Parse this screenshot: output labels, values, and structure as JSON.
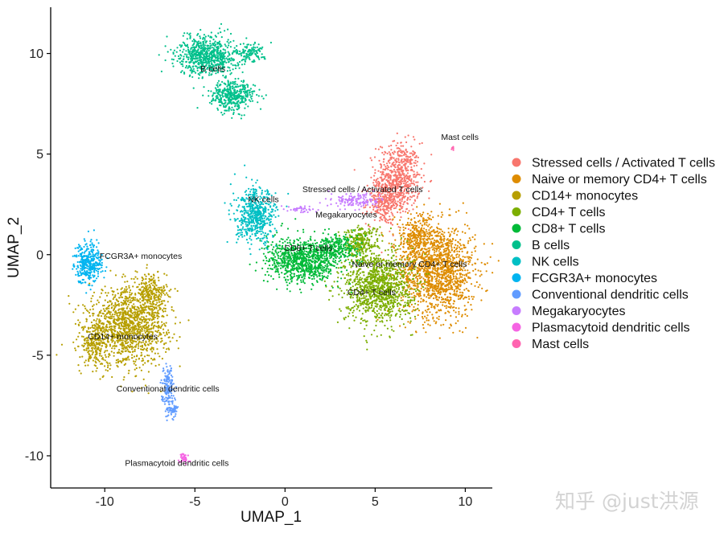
{
  "chart_data": {
    "type": "scatter",
    "xlabel": "UMAP_1",
    "ylabel": "UMAP_2",
    "xlim": [
      -13,
      11.5
    ],
    "ylim": [
      -11.6,
      12.3
    ],
    "xticks": [
      -10,
      -5,
      0,
      5,
      10
    ],
    "yticks": [
      -10,
      -5,
      0,
      5,
      10
    ],
    "xtick_labels": [
      "-10",
      "-5",
      "0",
      "5",
      "10"
    ],
    "ytick_labels": [
      "-10",
      "-5",
      "0",
      "5",
      "10"
    ],
    "grid": false,
    "legend_position": "right",
    "clusters": [
      {
        "name": "Stressed cells / Activated T cells",
        "color": "#F8766D",
        "label_x": 4.3,
        "label_y": 3.1,
        "blobs": [
          [
            6.3,
            3.8,
            1.1,
            1.6,
            650
          ],
          [
            5.4,
            2.6,
            0.8,
            1.0,
            250
          ]
        ]
      },
      {
        "name": "Naive or memory CD4+ T cells",
        "color": "#DE8C00",
        "label_x": 6.9,
        "label_y": -0.6,
        "blobs": [
          [
            8.5,
            -0.8,
            1.9,
            2.1,
            1400
          ],
          [
            7.3,
            0.8,
            1.1,
            1.1,
            300
          ]
        ]
      },
      {
        "name": "CD14+ monocytes",
        "color": "#B79F00",
        "label_x": -9.0,
        "label_y": -4.2,
        "blobs": [
          [
            -8.7,
            -3.6,
            2.0,
            1.7,
            1300
          ],
          [
            -7.4,
            -2.0,
            0.8,
            1.0,
            250
          ],
          [
            -10.6,
            -4.4,
            0.6,
            1.0,
            200
          ]
        ]
      },
      {
        "name": "CD4+ T cells",
        "color": "#7CAE00",
        "label_x": 4.8,
        "label_y": -2.0,
        "blobs": [
          [
            5.2,
            -1.6,
            1.7,
            1.6,
            1100
          ],
          [
            4.2,
            0.6,
            0.9,
            0.8,
            250
          ]
        ]
      },
      {
        "name": "CD8+ T cells",
        "color": "#00BA38",
        "label_x": 1.3,
        "label_y": 0.2,
        "blobs": [
          [
            1.0,
            -0.3,
            1.8,
            1.0,
            900
          ],
          [
            2.9,
            0.3,
            1.0,
            0.6,
            250
          ]
        ]
      },
      {
        "name": "B cells",
        "color": "#00C08B",
        "label_x": -4.0,
        "label_y": 9.1,
        "blobs": [
          [
            -4.3,
            9.9,
            1.5,
            0.9,
            700
          ],
          [
            -2.9,
            7.9,
            1.1,
            0.7,
            400
          ],
          [
            -2.0,
            10.0,
            0.8,
            0.4,
            120
          ]
        ]
      },
      {
        "name": "NK cells",
        "color": "#00BFC4",
        "label_x": -1.2,
        "label_y": 2.6,
        "blobs": [
          [
            -1.6,
            1.9,
            1.0,
            1.2,
            550
          ]
        ]
      },
      {
        "name": "FCGR3A+ monocytes",
        "color": "#00B4F0",
        "label_x": -8.0,
        "label_y": -0.2,
        "blobs": [
          [
            -10.9,
            -0.4,
            0.7,
            0.9,
            350
          ]
        ]
      },
      {
        "name": "Conventional dendritic cells",
        "color": "#619CFF",
        "label_x": -6.5,
        "label_y": -6.8,
        "blobs": [
          [
            -6.5,
            -6.7,
            0.3,
            1.0,
            160
          ],
          [
            -6.2,
            -7.7,
            0.2,
            0.3,
            50
          ]
        ]
      },
      {
        "name": "Megakaryocytes",
        "color": "#C77CFF",
        "label_x": 3.4,
        "label_y": 1.85,
        "blobs": [
          [
            4.0,
            2.7,
            1.2,
            0.35,
            140
          ],
          [
            0.9,
            2.25,
            0.7,
            0.15,
            40
          ]
        ]
      },
      {
        "name": "Plasmacytoid dendritic cells",
        "color": "#F564E3",
        "label_x": -6.0,
        "label_y": -10.5,
        "blobs": [
          [
            -5.6,
            -10.1,
            0.25,
            0.3,
            40
          ]
        ]
      },
      {
        "name": "Mast cells",
        "color": "#FF64B0",
        "label_x": 9.7,
        "label_y": 5.7,
        "blobs": [
          [
            9.3,
            5.3,
            0.08,
            0.08,
            8
          ]
        ]
      }
    ]
  },
  "watermark": "知乎 @just洪源"
}
